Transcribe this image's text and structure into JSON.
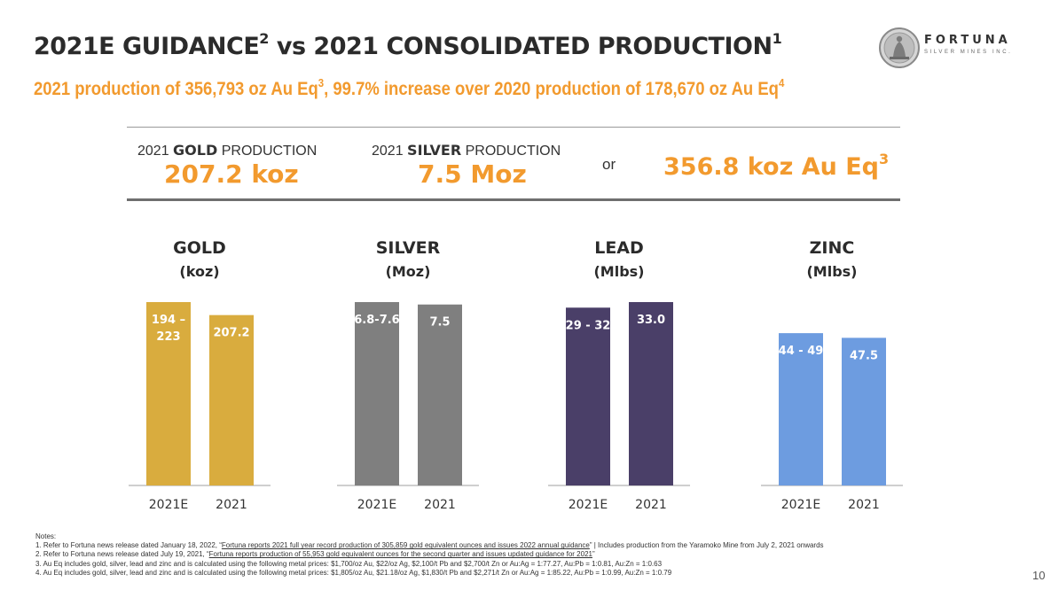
{
  "header": {
    "title_main": "2021E GUIDANCE",
    "title_sup1": "2",
    "title_mid": " vs 2021 CONSOLIDATED PRODUCTION",
    "title_sup2": "1",
    "subtitle_a": "2021 production of 356,793 oz Au Eq",
    "subtitle_sup_a": "3",
    "subtitle_b": ", 99.7% increase over 2020 production of 178,670 oz Au Eq",
    "subtitle_sup_b": "4"
  },
  "logo": {
    "word": "FORTUNA",
    "sub": "SILVER MINES INC."
  },
  "summary": {
    "gold_label_pre": "2021 ",
    "gold_label_bold": "GOLD",
    "gold_label_post": " PRODUCTION",
    "gold_value": "207.2 koz",
    "silver_label_pre": "2021 ",
    "silver_label_bold": "SILVER",
    "silver_label_post": " PRODUCTION",
    "silver_value": "7.5 Moz",
    "or": "or",
    "aueq_value": "356.8 koz Au Eq",
    "aueq_sup": "3"
  },
  "chart_data": [
    {
      "type": "bar",
      "title": "GOLD",
      "unit": "(koz)",
      "categories": [
        "2021E",
        "2021"
      ],
      "values": [
        223,
        207.2
      ],
      "labels": [
        "194 –\n223",
        "207.2"
      ],
      "color": "#d9ac3e",
      "ylim": [
        0,
        223
      ]
    },
    {
      "type": "bar",
      "title": "SILVER",
      "unit": "(Moz)",
      "categories": [
        "2021E",
        "2021"
      ],
      "values": [
        7.6,
        7.5
      ],
      "labels": [
        "6.8-7.6",
        "7.5"
      ],
      "color": "#7f7f7f",
      "ylim": [
        0,
        7.6
      ]
    },
    {
      "type": "bar",
      "title": "LEAD",
      "unit": "(Mlbs)",
      "categories": [
        "2021E",
        "2021"
      ],
      "values": [
        32,
        33.0
      ],
      "labels": [
        "29 - 32",
        "33.0"
      ],
      "color": "#4a3f68",
      "ylim": [
        0,
        33
      ]
    },
    {
      "type": "bar",
      "title": "ZINC",
      "unit": "(Mlbs)",
      "categories": [
        "2021E",
        "2021"
      ],
      "values": [
        49,
        47.5
      ],
      "labels": [
        "44 - 49",
        "47.5"
      ],
      "color": "#6d9ce0",
      "ylim": [
        0,
        59
      ]
    }
  ],
  "notes": {
    "heading": "Notes:",
    "n1_pre": "1.   Refer to Fortuna news release dated January 18, 2022, “",
    "n1_link": "Fortuna reports 2021 full year record production of 305,859 gold equivalent ounces and issues 2022 annual guidance",
    "n1_post": "” | Includes production from the Yaramoko Mine from July 2, 2021 onwards",
    "n2_pre": "2.   Refer to Fortuna news release dated July 19, 2021, “",
    "n2_link": "Fortuna reports production of 55,953 gold equivalent ounces for the second quarter and issues updated guidance for 2021",
    "n2_post": "”",
    "n3": "3.   Au Eq includes gold, silver, lead and zinc and is calculated using the following metal prices: $1,700/oz Au, $22/oz Ag, $2,100/t Pb and $2,700/t Zn or Au:Ag = 1:77.27, Au:Pb = 1:0.81, Au:Zn = 1:0.63",
    "n4": "4.   Au Eq includes gold, silver, lead and zinc and is calculated using the following metal prices: $1,805/oz Au, $21.18/oz Ag, $1,830/t Pb and $2,271/t Zn or Au:Ag = 1:85.22, Au:Pb = 1:0.99, Au:Zn = 1:0.79"
  },
  "page_number": "10"
}
